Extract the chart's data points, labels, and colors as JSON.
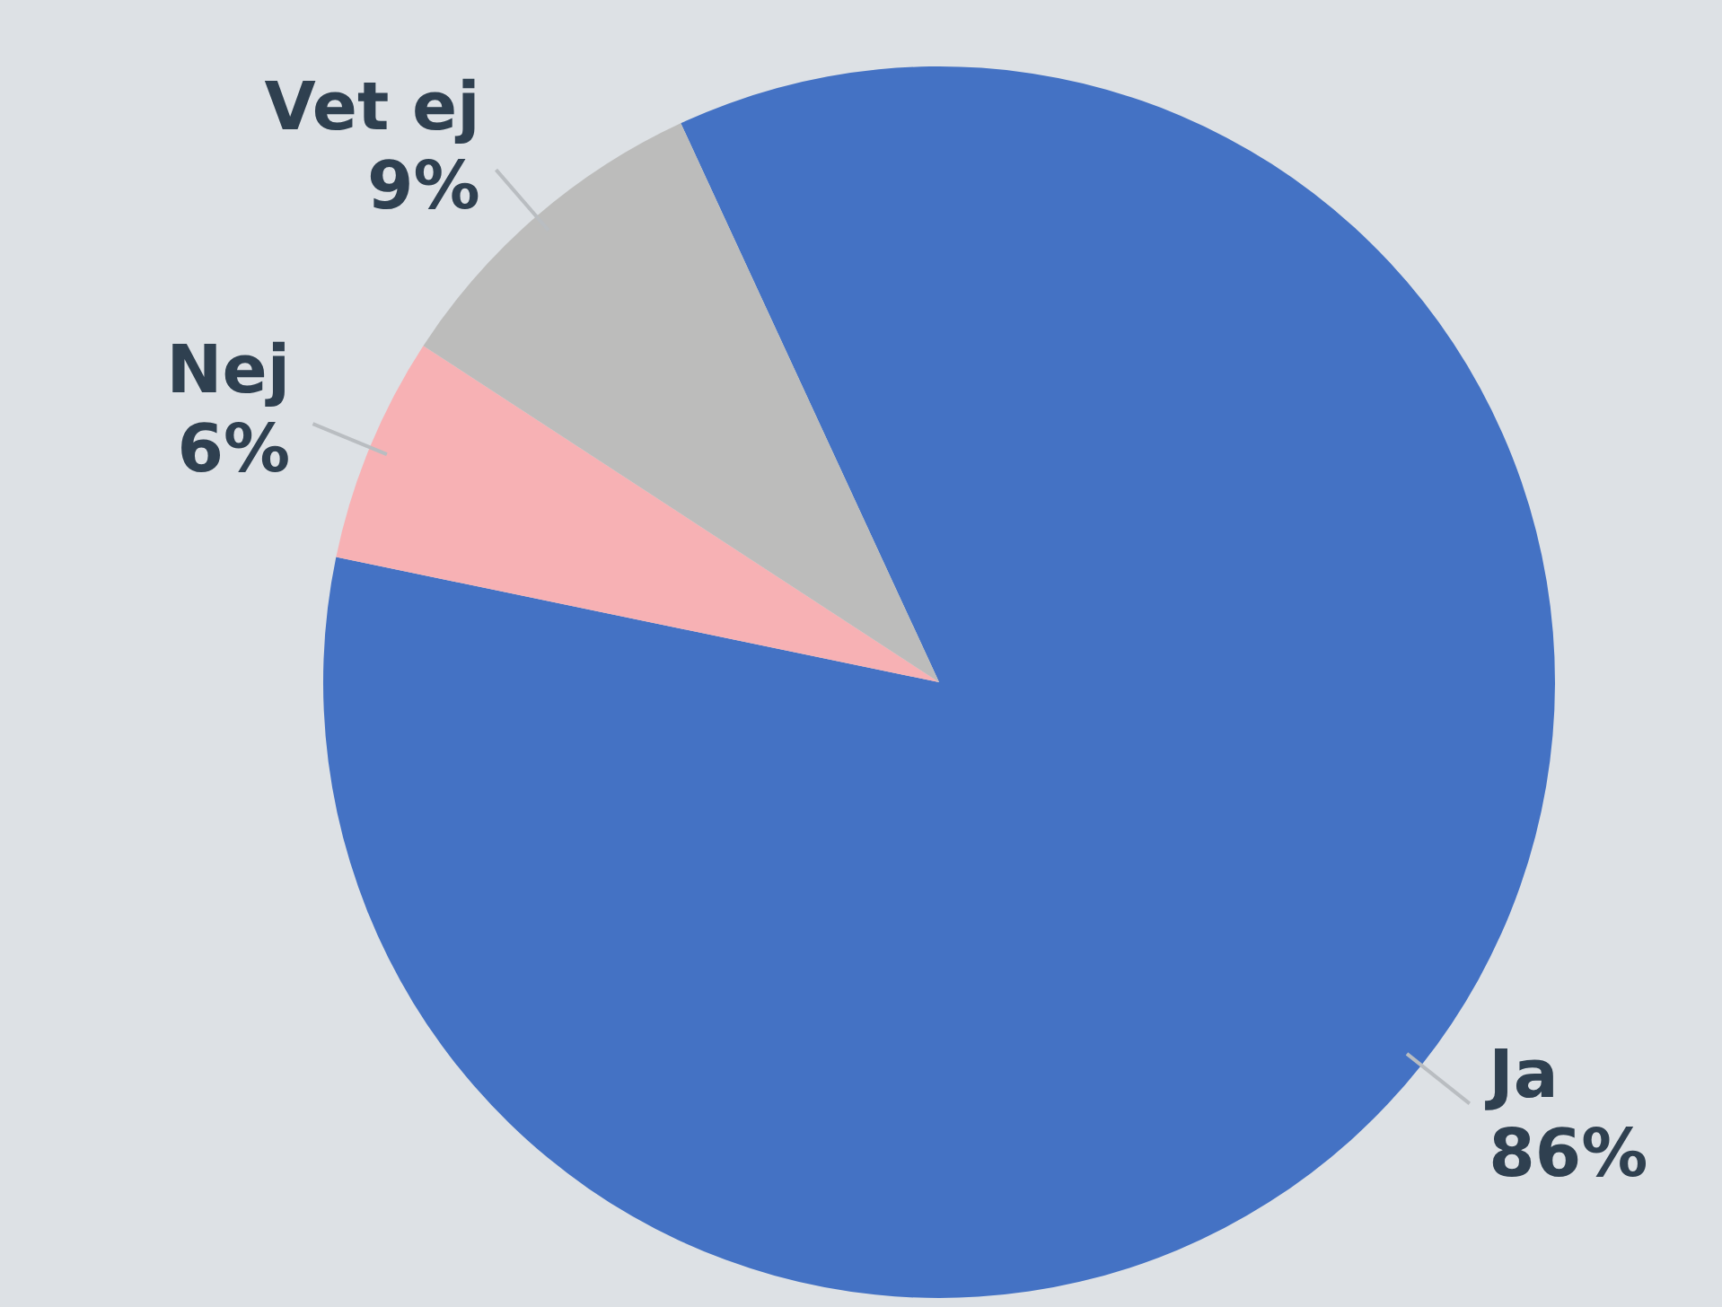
{
  "chart_data": {
    "type": "pie",
    "categories": [
      "Ja",
      "Nej",
      "Vet ej"
    ],
    "values": [
      86,
      6,
      9
    ],
    "colors": [
      "#4472c4",
      "#f7b1b4",
      "#bcbcbb"
    ],
    "value_labels": [
      "86%",
      "6%",
      "9%"
    ],
    "legend": false
  }
}
